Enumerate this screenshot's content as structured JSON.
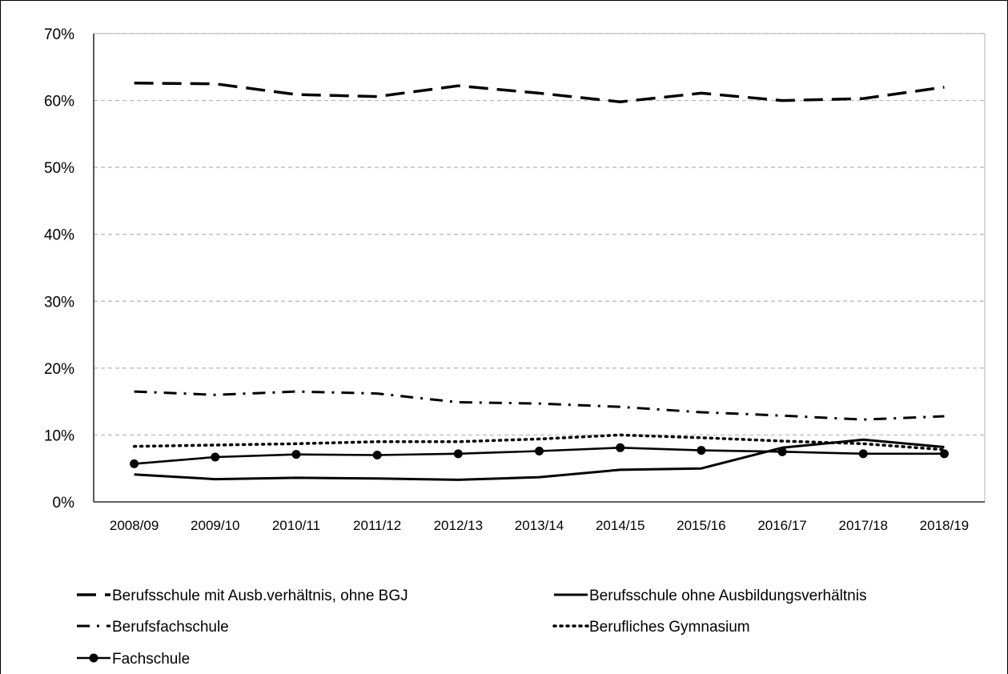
{
  "chart_data": {
    "type": "line",
    "title": "",
    "xlabel": "",
    "ylabel": "",
    "ylim": [
      0,
      70
    ],
    "y_tick_labels": [
      "0%",
      "10%",
      "20%",
      "30%",
      "40%",
      "50%",
      "60%",
      "70%"
    ],
    "y_tick_values": [
      0,
      10,
      20,
      30,
      40,
      50,
      60,
      70
    ],
    "categories": [
      "2008/09",
      "2009/10",
      "2010/11",
      "2011/12",
      "2012/13",
      "2013/14",
      "2014/15",
      "2015/16",
      "2016/17",
      "2017/18",
      "2018/19"
    ],
    "grid": "horizontal dashed",
    "legend_position": "bottom",
    "series": [
      {
        "name": "Berufsschule mit Ausb.verhältnis, ohne BGJ",
        "style": "long-dash",
        "color": "#000000",
        "values": [
          62.6,
          62.5,
          60.9,
          60.6,
          62.2,
          61.1,
          59.8,
          61.1,
          60.0,
          60.3,
          62.0
        ]
      },
      {
        "name": "Berufsschule ohne Ausbildungsverhältnis",
        "style": "solid",
        "color": "#000000",
        "values": [
          4.1,
          3.4,
          3.6,
          3.5,
          3.3,
          3.7,
          4.8,
          5.0,
          8.1,
          9.3,
          8.2
        ]
      },
      {
        "name": "Berufsfachschule",
        "style": "dash-dot",
        "color": "#000000",
        "values": [
          16.5,
          16.0,
          16.5,
          16.2,
          14.9,
          14.7,
          14.2,
          13.4,
          12.9,
          12.3,
          12.8
        ]
      },
      {
        "name": "Berufliches Gymnasium",
        "style": "dotted",
        "color": "#000000",
        "values": [
          8.3,
          8.5,
          8.7,
          9.0,
          9.0,
          9.4,
          10.0,
          9.6,
          9.1,
          8.7,
          7.8
        ]
      },
      {
        "name": "Fachschule",
        "style": "solid-markers",
        "color": "#000000",
        "values": [
          5.7,
          6.7,
          7.1,
          7.0,
          7.2,
          7.6,
          8.1,
          7.7,
          7.5,
          7.2,
          7.2
        ]
      }
    ]
  }
}
